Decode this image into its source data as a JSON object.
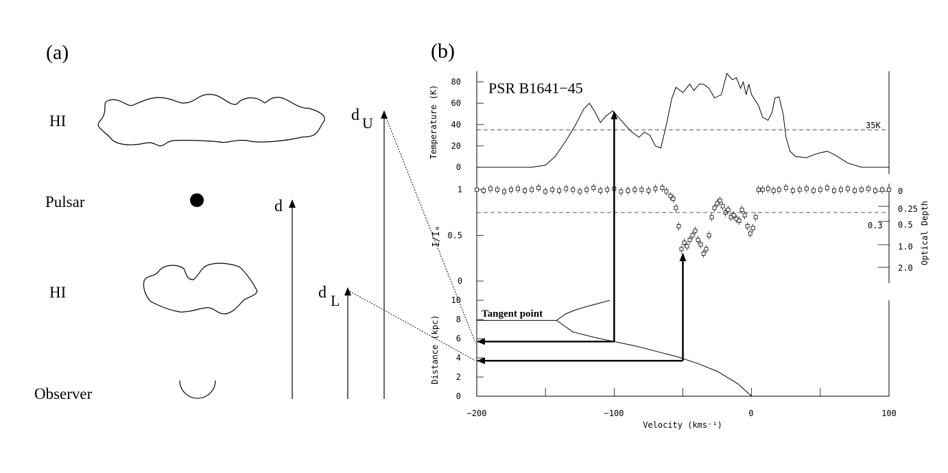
{
  "panel_a": {
    "label": "(a)",
    "objects": [
      "HI",
      "Pulsar",
      "HI",
      "Observer"
    ],
    "distances": {
      "d": "d",
      "d_upper_base": "d",
      "d_upper_sub": "U",
      "d_lower_base": "d",
      "d_lower_sub": "L"
    }
  },
  "panel_b": {
    "label": "(b)",
    "pulsar_name": "PSR B1641−45",
    "temp_threshold_label": "35K",
    "tangent_label": "Tangent point",
    "optical_depth_axis_label": "Optical Depth",
    "optical_depth_ticks": [
      "0",
      "0.25",
      "0.5",
      "1.0",
      "2.0"
    ],
    "optical_depth_extra": "0.3",
    "x_axis_label": "Velocity (kms⁻¹)",
    "x_ticks": [
      "−200",
      "−100",
      "0",
      "100"
    ]
  },
  "chart_data": [
    {
      "type": "line",
      "panel": "emission",
      "ylabel": "Temperature (K)",
      "xlim": [
        -200,
        100
      ],
      "ylim": [
        0,
        90
      ],
      "yticks": [
        0,
        20,
        40,
        60,
        80
      ],
      "threshold": 35,
      "x": [
        -200,
        -160,
        -150,
        -143,
        -135,
        -128,
        -122,
        -118,
        -114,
        -110,
        -106,
        -101,
        -95,
        -88,
        -82,
        -78,
        -74,
        -70,
        -66,
        -62,
        -58,
        -55,
        -50,
        -45,
        -42,
        -38,
        -35,
        -31,
        -27,
        -22,
        -18,
        -14,
        -11,
        -8,
        -6,
        -4,
        -2,
        0,
        3,
        5,
        8,
        12,
        15,
        17,
        20,
        23,
        25,
        28,
        32,
        40,
        48,
        55,
        60,
        70,
        80,
        100
      ],
      "y": [
        0,
        0,
        2,
        10,
        25,
        40,
        55,
        60,
        52,
        42,
        48,
        53,
        44,
        34,
        28,
        33,
        30,
        20,
        18,
        40,
        65,
        75,
        70,
        78,
        72,
        78,
        78,
        74,
        65,
        68,
        88,
        82,
        84,
        74,
        80,
        68,
        78,
        68,
        62,
        58,
        47,
        44,
        52,
        65,
        66,
        50,
        28,
        15,
        10,
        9,
        13,
        15,
        12,
        4,
        0,
        0
      ]
    },
    {
      "type": "scatter",
      "panel": "absorption",
      "ylabel": "I/I₀",
      "xlim": [
        -200,
        100
      ],
      "ylim": [
        0,
        1.05
      ],
      "yticks": [
        0,
        0.5,
        1
      ],
      "threshold": 0.75,
      "x": [
        -200,
        -195,
        -190,
        -185,
        -180,
        -175,
        -170,
        -165,
        -160,
        -155,
        -150,
        -145,
        -140,
        -135,
        -130,
        -125,
        -120,
        -115,
        -110,
        -105,
        -100,
        -95,
        -90,
        -85,
        -80,
        -75,
        -70,
        -65,
        -62,
        -59,
        -57,
        -55,
        -53,
        -51,
        -49,
        -47,
        -45,
        -43,
        -41,
        -39,
        -37,
        -35,
        -33,
        -31,
        -29,
        -27,
        -25,
        -23,
        -21,
        -19,
        -17,
        -15,
        -13,
        -11,
        -9,
        -7,
        -5,
        -3,
        -1,
        1,
        3,
        5,
        8,
        12,
        16,
        20,
        25,
        30,
        35,
        40,
        45,
        50,
        55,
        60,
        65,
        70,
        75,
        80,
        85,
        90,
        95,
        100
      ],
      "y": [
        1.0,
        0.99,
        1.01,
        1.0,
        0.98,
        1.0,
        1.01,
        0.99,
        1.0,
        1.02,
        0.98,
        1.0,
        0.99,
        1.01,
        1.0,
        0.98,
        1.0,
        1.02,
        0.99,
        1.0,
        1.01,
        0.98,
        0.99,
        1.0,
        1.0,
        0.99,
        1.01,
        1.02,
        0.98,
        0.93,
        0.9,
        0.8,
        0.6,
        0.35,
        0.42,
        0.38,
        0.45,
        0.5,
        0.55,
        0.45,
        0.4,
        0.3,
        0.35,
        0.5,
        0.7,
        0.8,
        0.85,
        0.88,
        0.82,
        0.75,
        0.78,
        0.7,
        0.72,
        0.68,
        0.66,
        0.78,
        0.72,
        0.6,
        0.52,
        0.58,
        0.7,
        1.0,
        1.0,
        1.01,
        0.99,
        1.0,
        1.02,
        0.99,
        1.0,
        1.01,
        0.99,
        1.0,
        1.02,
        0.99,
        1.0,
        1.01,
        0.99,
        1.0,
        1.01,
        0.99,
        1.0,
        1.0
      ]
    },
    {
      "type": "line",
      "panel": "rotation",
      "ylabel": "Distance (kpc)",
      "xlim": [
        -200,
        100
      ],
      "ylim": [
        0,
        10
      ],
      "yticks": [
        0,
        2,
        4,
        6,
        8,
        10
      ],
      "tangent": {
        "x": -142,
        "y": 7.9
      },
      "near_branch": {
        "x": [
          -142,
          -130,
          -115,
          -100,
          -85,
          -70,
          -55,
          -40,
          -25,
          -10,
          0
        ],
        "y": [
          7.9,
          6.7,
          6.15,
          5.7,
          5.25,
          4.7,
          4.15,
          3.45,
          2.6,
          1.3,
          0
        ]
      },
      "far_branch": {
        "x": [
          -142,
          -135,
          -128,
          -120,
          -110,
          -103
        ],
        "y": [
          7.9,
          8.6,
          9.0,
          9.35,
          9.72,
          10.0
        ]
      },
      "arrows": [
        {
          "from_x": -100,
          "to_y": 5.7
        },
        {
          "from_x": -50,
          "to_y": 3.7
        }
      ]
    }
  ]
}
